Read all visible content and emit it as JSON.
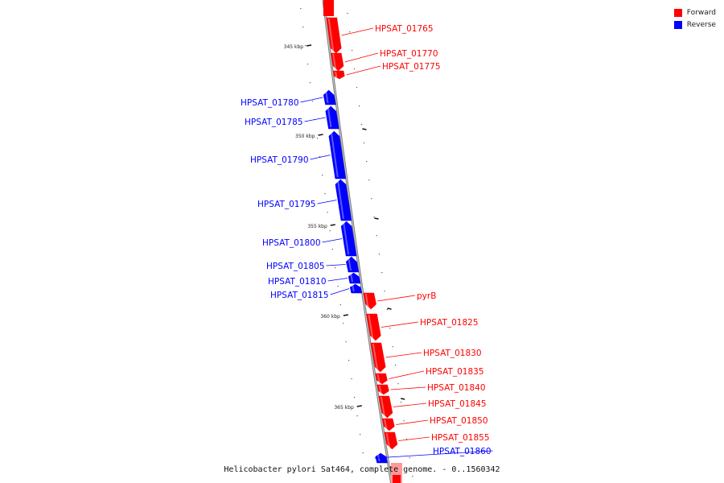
{
  "legend": {
    "forward_label": "Forward",
    "reverse_label": "Reverse",
    "forward_color": "#ff0000",
    "reverse_color": "#0000ff"
  },
  "caption": "Helicobacter pylori Sat464, complete genome. - 0..1560342",
  "kbp_ticks": [
    "345 kbp",
    "350 kbp",
    "355 kbp",
    "360 kbp",
    "365 kbp"
  ],
  "genes": [
    {
      "label": "HPSAT_01765",
      "strand": "forward"
    },
    {
      "label": "HPSAT_01770",
      "strand": "forward"
    },
    {
      "label": "HPSAT_01775",
      "strand": "forward"
    },
    {
      "label": "HPSAT_01780",
      "strand": "reverse"
    },
    {
      "label": "HPSAT_01785",
      "strand": "reverse"
    },
    {
      "label": "HPSAT_01790",
      "strand": "reverse"
    },
    {
      "label": "HPSAT_01795",
      "strand": "reverse"
    },
    {
      "label": "HPSAT_01800",
      "strand": "reverse"
    },
    {
      "label": "HPSAT_01805",
      "strand": "reverse"
    },
    {
      "label": "HPSAT_01810",
      "strand": "reverse"
    },
    {
      "label": "HPSAT_01815",
      "strand": "reverse"
    },
    {
      "label": "pyrB",
      "strand": "forward"
    },
    {
      "label": "HPSAT_01825",
      "strand": "forward"
    },
    {
      "label": "HPSAT_01830",
      "strand": "forward"
    },
    {
      "label": "HPSAT_01835",
      "strand": "forward"
    },
    {
      "label": "HPSAT_01840",
      "strand": "forward"
    },
    {
      "label": "HPSAT_01845",
      "strand": "forward"
    },
    {
      "label": "HPSAT_01850",
      "strand": "forward"
    },
    {
      "label": "HPSAT_01855",
      "strand": "forward"
    },
    {
      "label": "HPSAT_01860",
      "strand": "reverse"
    }
  ]
}
